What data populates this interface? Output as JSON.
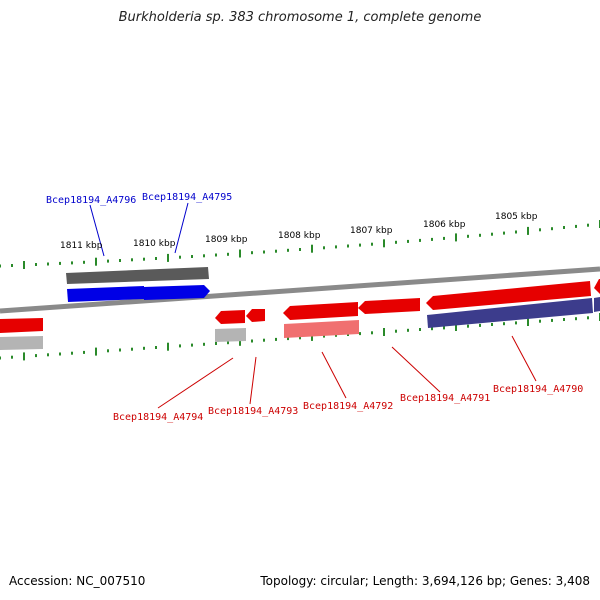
{
  "title": "Burkholderia sp. 383 chromosome 1, complete genome",
  "accession": "Accession: NC_007510",
  "topology": "Topology: circular; Length: 3,694,126 bp; Genes: 3,408",
  "colors": {
    "backbone": "#8a8a8a",
    "tick": "#2a8a2a",
    "gene_forward": "#0000e6",
    "gene_forward_label": "#0000cc",
    "gene_reverse": "#e60000",
    "gene_reverse_light": "#f07070",
    "gene_reverse_label": "#cc0000",
    "cds_dark": "#5a5a5a",
    "cds_light": "#b4b4b4",
    "cds_navy": "#3c3c8c",
    "kbp_label": "#000000"
  },
  "kbp_labels": [
    "1811 kbp",
    "1810 kbp",
    "1809 kbp",
    "1808 kbp",
    "1807 kbp",
    "1806 kbp",
    "1805 kbp"
  ],
  "gene_labels": {
    "forward": [
      "Bcep18194_A4796",
      "Bcep18194_A4795"
    ],
    "reverse": [
      "Bcep18194_A4794",
      "Bcep18194_A4793",
      "Bcep18194_A4792",
      "Bcep18194_A4791",
      "Bcep18194_A4790"
    ]
  }
}
